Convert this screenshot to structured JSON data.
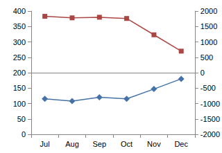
{
  "chart_data": {
    "type": "line",
    "categories": [
      "Jul",
      "Aug",
      "Sep",
      "Oct",
      "Nov",
      "Dec"
    ],
    "series": [
      {
        "color": "#4572a7",
        "marker": "diamond",
        "values": [
          115,
          108,
          120,
          115,
          147,
          180
        ]
      },
      {
        "color": "#aa4643",
        "marker": "square",
        "axis": "y2",
        "values": [
          1830,
          1780,
          1800,
          1760,
          1230,
          700
        ]
      }
    ],
    "ylim": [
      0,
      400
    ],
    "yticks": [
      0,
      50,
      100,
      150,
      200,
      250,
      300,
      350,
      400
    ],
    "y2lim": [
      -2000,
      2000
    ],
    "y2ticks": [
      -2000,
      -1500,
      -1000,
      -500,
      0,
      500,
      1000,
      1500,
      2000
    ],
    "grid": false
  }
}
